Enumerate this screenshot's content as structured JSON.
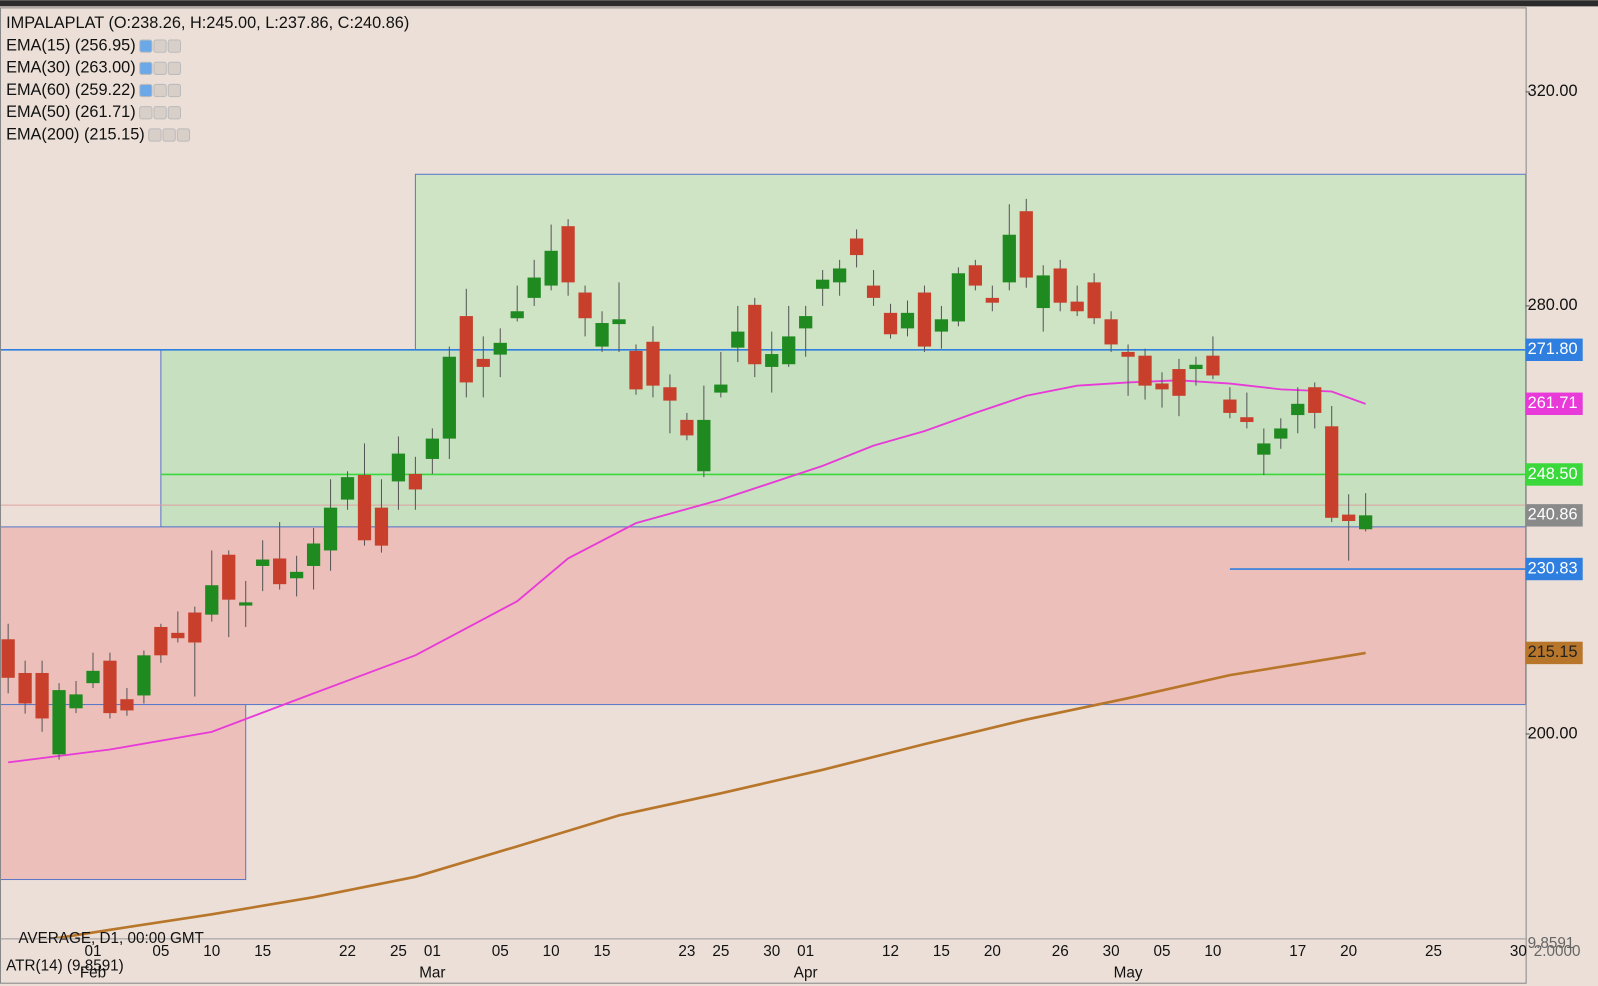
{
  "chart_data": {
    "type": "candlestick",
    "title": "IMPALAPLAT (O:238.26, H:245.00, L:237.86, C:240.86)",
    "indicators": [
      "EMA(15) (256.95)",
      "EMA(30) (263.00)",
      "EMA(60) (259.22)",
      "EMA(50) (261.71)",
      "EMA(200) (215.15)"
    ],
    "indicator_active": [
      true,
      true,
      true,
      false,
      false
    ],
    "up_color": "#1f8a1f",
    "down_color": "#c8402c",
    "open": [
      217.7,
      211.4,
      211.4,
      196.2,
      204.8,
      209.5,
      213.7,
      206.5,
      207.2,
      220,
      218.9,
      222.7,
      222.3,
      233.5,
      224,
      231.4,
      232.8,
      229.1,
      231.4,
      234.3,
      243.8,
      248.4,
      242.3,
      247.2,
      248.6,
      251.4,
      255.2,
      278.1,
      270.1,
      270.9,
      277.7,
      281.5,
      283.8,
      294.9,
      282.5,
      272.4,
      276.6,
      271.6,
      273.3,
      264.8,
      258.7,
      249.1,
      263.8,
      272.2,
      280.2,
      268.6,
      269.1,
      275.8,
      283.2,
      284.4,
      292.6,
      283.8,
      278.7,
      275.8,
      282.5,
      275.2,
      277.1,
      287.6,
      281.5,
      284.4,
      297.7,
      279.6,
      287,
      280.8,
      284.4,
      277.5,
      271.4,
      270.7,
      265.5,
      268.2,
      268.2,
      270.7,
      262.5,
      259.2,
      252.2,
      255.2,
      259.6,
      264.8,
      257.5,
      241,
      238.26
    ],
    "high": [
      220.6,
      213.7,
      213.7,
      209.5,
      209.9,
      215.2,
      215.2,
      208.6,
      215.6,
      220.6,
      222.9,
      223.8,
      234.3,
      234.3,
      228.6,
      236.2,
      239.6,
      233.3,
      238.5,
      247.6,
      249.1,
      254.3,
      247.6,
      255.6,
      251.8,
      257.1,
      272.4,
      283.2,
      274.3,
      275.8,
      283.8,
      288.6,
      295.2,
      296.2,
      283.8,
      279.0,
      284.4,
      272.8,
      276.2,
      267.2,
      260.0,
      265.1,
      271.4,
      280.0,
      281.5,
      275.2,
      280.0,
      280.0,
      286.7,
      288.6,
      294.3,
      286.7,
      280.4,
      281.0,
      283.8,
      280.0,
      287.2,
      288.6,
      283.8,
      299.0,
      300.0,
      287.6,
      288.6,
      283.8,
      286.1,
      279.0,
      272.8,
      272.0,
      267.6,
      270.1,
      270.5,
      274.3,
      264.8,
      263.8,
      257.1,
      259.0,
      264.8,
      265.7,
      261.3,
      244.8,
      245
    ],
    "low": [
      207.6,
      203.8,
      200.4,
      195.2,
      203.9,
      208.6,
      202.9,
      203.4,
      205.7,
      213.3,
      217.1,
      207.0,
      221.0,
      218.1,
      220,
      226.7,
      227.0,
      225.7,
      227.0,
      230.5,
      241.9,
      235.2,
      233.9,
      241.9,
      241.9,
      248.6,
      251.4,
      262.9,
      262.9,
      266.7,
      277.1,
      280.0,
      282.9,
      281.9,
      274.3,
      271.4,
      271.4,
      263.4,
      262.9,
      256.2,
      254.9,
      248.0,
      262.9,
      269.5,
      266.7,
      263.8,
      268.6,
      270.5,
      280.0,
      281.9,
      287.2,
      280.0,
      273.9,
      274.3,
      271.4,
      272.0,
      276.2,
      282.9,
      279.0,
      282.9,
      283.4,
      275.2,
      279.0,
      278.1,
      276.6,
      271.4,
      263.2,
      262.5,
      261.0,
      259.4,
      265.1,
      266.3,
      259.0,
      257.1,
      248.4,
      253.3,
      256.2,
      257.1,
      239.6,
      232.4,
      237.86
    ],
    "close": [
      210.5,
      205.7,
      202.9,
      208.2,
      207.4,
      211.8,
      203.9,
      204.4,
      214.7,
      214.7,
      217.9,
      217.1,
      227.8,
      225.1,
      224.6,
      232.6,
      228.0,
      230.3,
      235.6,
      242.3,
      248.0,
      236.2,
      235.2,
      252.4,
      245.7,
      255.2,
      270.5,
      265.7,
      268.6,
      273.1,
      279.0,
      285.3,
      290.3,
      284.4,
      277.7,
      276.8,
      277.5,
      264.4,
      265.1,
      262.3,
      255.8,
      258.7,
      265.3,
      275.2,
      269.1,
      271.0,
      274.3,
      278.1,
      284.9,
      287.0,
      289.5,
      281.5,
      274.7,
      278.7,
      272.4,
      277.5,
      286.1,
      283.8,
      280.6,
      293.3,
      285.3,
      285.7,
      280.6,
      279.0,
      277.7,
      272.8,
      270.5,
      265.1,
      264.4,
      263.2,
      269.0,
      267.0,
      260.0,
      258.3,
      254.3,
      257.1,
      261.7,
      260.0,
      240.4,
      239.8,
      240.86
    ],
    "series": [
      {
        "color": "#e83ad8",
        "x": [
          0,
          6,
          12,
          18,
          24,
          30,
          33,
          37,
          42,
          48,
          51,
          54,
          57,
          60,
          63,
          66,
          69,
          72,
          75,
          78,
          80
        ],
        "values": [
          194.7,
          197.1,
          200.4,
          207.6,
          214.7,
          224.8,
          232.8,
          239.4,
          243.8,
          250.1,
          253.9,
          256.6,
          260.0,
          263.2,
          265.1,
          265.7,
          266.1,
          265.5,
          264.4,
          264.0,
          261.71
        ]
      },
      {
        "color": "#b8762a",
        "x": [
          0,
          6,
          12,
          18,
          24,
          30,
          36,
          42,
          48,
          54,
          60,
          66,
          72,
          78,
          80
        ],
        "values": [
          160.4,
          163.4,
          166.3,
          169.5,
          173.3,
          179.0,
          184.8,
          188.9,
          193.3,
          198.1,
          202.7,
          206.7,
          211.0,
          214.1,
          215.15
        ]
      }
    ],
    "zones": [
      {
        "top": 304.6,
        "bottom": 271.8,
        "from": 24,
        "fill": "#cfe3c5"
      },
      {
        "top": 271.8,
        "bottom": 238.7,
        "from": 9,
        "fill": "#c6e0c0"
      },
      {
        "top": 238.7,
        "bottom": 205.5,
        "from": 0,
        "fill": "#ecbfba"
      },
      {
        "top": 205.5,
        "bottom": 172.8,
        "from": 0,
        "to": 14,
        "fill": "#ecbfba"
      }
    ],
    "levels": [
      {
        "price": {
          "value": 271.8,
          "label": "271.80"
        },
        "from": 0,
        "color": "#2f7fe0"
      },
      {
        "price": {
          "value": 248.5,
          "label": "248.50"
        },
        "from": 9,
        "color": "#3ad83a"
      },
      {
        "price": 230.83,
        "from": 72,
        "color": "#2f7fe0"
      }
    ],
    "ylim": [
      161.9,
      335.6
    ],
    "yticks": [
      {
        "value": 320,
        "label": "320.00"
      },
      {
        "value": 280,
        "label": "280.00"
      },
      {
        "value": 200,
        "label": "200.00"
      }
    ],
    "xlabels": [
      {
        "index": 5,
        "label": "01"
      },
      {
        "index": 9,
        "label": "05"
      },
      {
        "index": 12,
        "label": "10"
      },
      {
        "index": 15,
        "label": "15"
      },
      {
        "index": 20,
        "label": "22"
      },
      {
        "index": 23,
        "label": "25"
      },
      {
        "index": 25,
        "label": "01"
      },
      {
        "index": 29,
        "label": "05"
      },
      {
        "index": 32,
        "label": "10"
      },
      {
        "index": 35,
        "label": "15"
      },
      {
        "index": 40,
        "label": "23"
      },
      {
        "index": 42,
        "label": "25"
      },
      {
        "index": 45,
        "label": "30"
      },
      {
        "index": 47,
        "label": "01"
      },
      {
        "index": 52,
        "label": "12"
      },
      {
        "index": 55,
        "label": "15"
      },
      {
        "index": 58,
        "label": "20"
      },
      {
        "index": 62,
        "label": "26"
      },
      {
        "index": 65,
        "label": "30"
      },
      {
        "index": 68,
        "label": "05"
      },
      {
        "index": 71,
        "label": "10"
      },
      {
        "index": 76,
        "label": "17"
      },
      {
        "index": 79,
        "label": "20"
      },
      {
        "index": 84,
        "label": "25"
      },
      {
        "index": 89,
        "label": "30"
      }
    ],
    "months": [
      {
        "index": 5,
        "label": "Feb"
      },
      {
        "index": 25,
        "label": "Mar"
      },
      {
        "index": 47,
        "label": "Apr"
      },
      {
        "index": 66,
        "label": "May"
      }
    ],
    "footer": {
      "panel": "AVERAGE, D1, 00:00 GMT",
      "atr": "ATR(14) (9.8591)",
      "atr_value": "9.8591",
      "atr_low": "2.0000"
    }
  }
}
